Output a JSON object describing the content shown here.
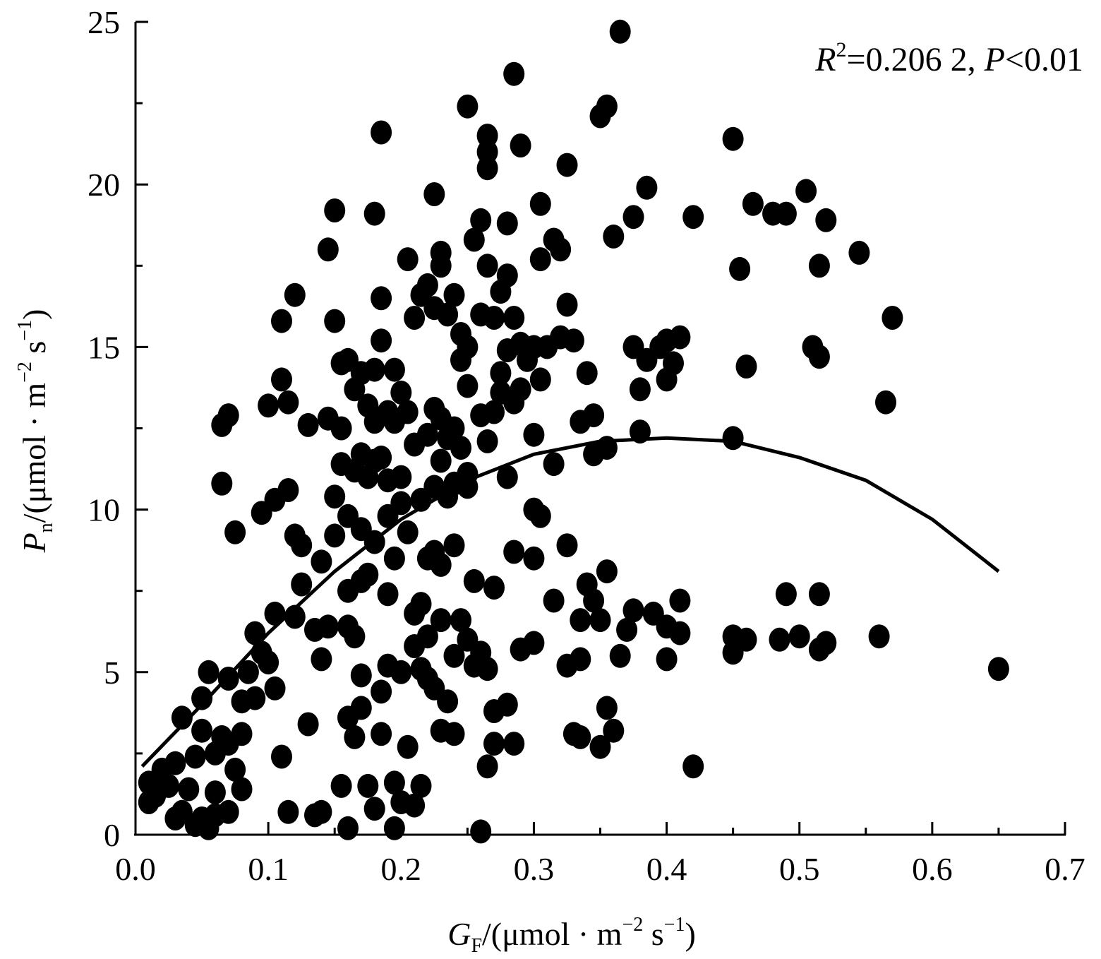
{
  "chart_data": {
    "type": "scatter",
    "xlim": [
      0.0,
      0.7
    ],
    "ylim": [
      0,
      25
    ],
    "x_ticks": [
      "0.0",
      "0.1",
      "0.2",
      "0.3",
      "0.4",
      "0.5",
      "0.6",
      "0.7"
    ],
    "x_tick_values": [
      0.0,
      0.1,
      0.2,
      0.3,
      0.4,
      0.5,
      0.6,
      0.7
    ],
    "y_ticks": [
      "0",
      "5",
      "10",
      "15",
      "20",
      "25"
    ],
    "y_tick_values": [
      0,
      5,
      10,
      15,
      20,
      25
    ],
    "xlabel": {
      "main": "G",
      "sub": "F",
      "unit_open": "/(μmol · m",
      "exp1": "−2",
      "unit_mid": " s",
      "exp2": "−1",
      "unit_close": ")"
    },
    "ylabel": {
      "main": "P",
      "sub": "n",
      "unit_open": "/(μmol · m",
      "exp1": "−2",
      "unit_mid": " s",
      "exp2": "−1",
      "unit_close": ")"
    },
    "annotation": {
      "r_symbol": "R",
      "r_exp": "2",
      "r_value": "=0.206 2, ",
      "p_symbol": "P",
      "p_value": "<0.01"
    },
    "grid": false,
    "legend": "none",
    "marker_color": "#000000",
    "line_color": "#000000",
    "fit_curve": {
      "type": "quadratic",
      "x": [
        0.005,
        0.05,
        0.1,
        0.15,
        0.2,
        0.25,
        0.3,
        0.35,
        0.4,
        0.45,
        0.5,
        0.55,
        0.6,
        0.65
      ],
      "y": [
        2.1,
        4.0,
        6.2,
        8.1,
        9.7,
        10.9,
        11.7,
        12.1,
        12.2,
        12.1,
        11.6,
        10.9,
        9.7,
        8.1
      ]
    },
    "series": [
      {
        "points": [
          [
            0.01,
            1.6
          ],
          [
            0.01,
            1.0
          ],
          [
            0.015,
            1.2
          ],
          [
            0.02,
            2.0
          ],
          [
            0.025,
            1.5
          ],
          [
            0.03,
            2.2
          ],
          [
            0.03,
            0.5
          ],
          [
            0.035,
            3.6
          ],
          [
            0.035,
            0.7
          ],
          [
            0.04,
            1.4
          ],
          [
            0.045,
            0.3
          ],
          [
            0.045,
            2.4
          ],
          [
            0.05,
            4.2
          ],
          [
            0.05,
            3.2
          ],
          [
            0.05,
            0.5
          ],
          [
            0.055,
            5.0
          ],
          [
            0.055,
            0.2
          ],
          [
            0.06,
            2.5
          ],
          [
            0.06,
            1.3
          ],
          [
            0.06,
            0.6
          ],
          [
            0.065,
            12.6
          ],
          [
            0.065,
            10.8
          ],
          [
            0.065,
            3.0
          ],
          [
            0.07,
            12.9
          ],
          [
            0.07,
            4.8
          ],
          [
            0.07,
            2.8
          ],
          [
            0.07,
            0.7
          ],
          [
            0.075,
            9.3
          ],
          [
            0.075,
            2.0
          ],
          [
            0.08,
            4.1
          ],
          [
            0.08,
            3.1
          ],
          [
            0.08,
            1.4
          ],
          [
            0.085,
            5.0
          ],
          [
            0.09,
            6.2
          ],
          [
            0.09,
            4.2
          ],
          [
            0.095,
            9.9
          ],
          [
            0.095,
            5.6
          ],
          [
            0.1,
            13.2
          ],
          [
            0.1,
            5.3
          ],
          [
            0.105,
            10.3
          ],
          [
            0.105,
            4.5
          ],
          [
            0.105,
            6.8
          ],
          [
            0.11,
            15.8
          ],
          [
            0.11,
            14.0
          ],
          [
            0.11,
            2.4
          ],
          [
            0.115,
            10.6
          ],
          [
            0.115,
            13.3
          ],
          [
            0.115,
            0.7
          ],
          [
            0.12,
            16.6
          ],
          [
            0.12,
            9.2
          ],
          [
            0.12,
            6.7
          ],
          [
            0.125,
            8.9
          ],
          [
            0.125,
            7.7
          ],
          [
            0.13,
            12.6
          ],
          [
            0.13,
            3.4
          ],
          [
            0.135,
            6.3
          ],
          [
            0.135,
            0.6
          ],
          [
            0.14,
            8.4
          ],
          [
            0.14,
            5.4
          ],
          [
            0.14,
            0.7
          ],
          [
            0.145,
            18.0
          ],
          [
            0.145,
            12.8
          ],
          [
            0.145,
            6.4
          ],
          [
            0.15,
            19.2
          ],
          [
            0.15,
            15.8
          ],
          [
            0.15,
            10.4
          ],
          [
            0.15,
            9.2
          ],
          [
            0.155,
            14.5
          ],
          [
            0.155,
            12.5
          ],
          [
            0.155,
            11.4
          ],
          [
            0.155,
            1.5
          ],
          [
            0.16,
            14.6
          ],
          [
            0.16,
            9.8
          ],
          [
            0.16,
            7.5
          ],
          [
            0.16,
            6.4
          ],
          [
            0.16,
            3.6
          ],
          [
            0.16,
            0.2
          ],
          [
            0.165,
            13.7
          ],
          [
            0.165,
            11.2
          ],
          [
            0.165,
            6.1
          ],
          [
            0.165,
            3.0
          ],
          [
            0.17,
            14.2
          ],
          [
            0.17,
            11.7
          ],
          [
            0.17,
            9.4
          ],
          [
            0.17,
            7.8
          ],
          [
            0.17,
            4.9
          ],
          [
            0.17,
            3.9
          ],
          [
            0.175,
            13.2
          ],
          [
            0.175,
            11.0
          ],
          [
            0.175,
            8.0
          ],
          [
            0.175,
            1.5
          ],
          [
            0.18,
            19.1
          ],
          [
            0.18,
            14.3
          ],
          [
            0.18,
            12.7
          ],
          [
            0.18,
            11.5
          ],
          [
            0.18,
            9.0
          ],
          [
            0.18,
            0.8
          ],
          [
            0.185,
            21.6
          ],
          [
            0.185,
            16.5
          ],
          [
            0.185,
            15.2
          ],
          [
            0.185,
            11.6
          ],
          [
            0.185,
            4.4
          ],
          [
            0.185,
            3.1
          ],
          [
            0.19,
            13.0
          ],
          [
            0.19,
            10.9
          ],
          [
            0.19,
            9.8
          ],
          [
            0.19,
            7.4
          ],
          [
            0.19,
            5.2
          ],
          [
            0.195,
            14.3
          ],
          [
            0.195,
            12.7
          ],
          [
            0.195,
            8.5
          ],
          [
            0.195,
            1.6
          ],
          [
            0.195,
            0.2
          ],
          [
            0.2,
            13.6
          ],
          [
            0.2,
            11.0
          ],
          [
            0.2,
            10.2
          ],
          [
            0.2,
            5.0
          ],
          [
            0.2,
            1.0
          ],
          [
            0.205,
            17.7
          ],
          [
            0.205,
            13.0
          ],
          [
            0.205,
            9.3
          ],
          [
            0.205,
            2.7
          ],
          [
            0.21,
            15.9
          ],
          [
            0.21,
            12.0
          ],
          [
            0.21,
            6.8
          ],
          [
            0.21,
            5.8
          ],
          [
            0.21,
            0.9
          ],
          [
            0.215,
            16.6
          ],
          [
            0.215,
            10.3
          ],
          [
            0.215,
            7.1
          ],
          [
            0.215,
            5.1
          ],
          [
            0.215,
            1.5
          ],
          [
            0.22,
            16.9
          ],
          [
            0.22,
            12.3
          ],
          [
            0.22,
            8.5
          ],
          [
            0.22,
            6.1
          ],
          [
            0.22,
            4.8
          ],
          [
            0.225,
            19.7
          ],
          [
            0.225,
            16.2
          ],
          [
            0.225,
            13.1
          ],
          [
            0.225,
            10.7
          ],
          [
            0.225,
            8.7
          ],
          [
            0.225,
            4.5
          ],
          [
            0.23,
            17.9
          ],
          [
            0.23,
            17.5
          ],
          [
            0.23,
            12.8
          ],
          [
            0.23,
            11.5
          ],
          [
            0.23,
            8.3
          ],
          [
            0.23,
            6.6
          ],
          [
            0.23,
            3.2
          ],
          [
            0.235,
            16.0
          ],
          [
            0.235,
            12.2
          ],
          [
            0.235,
            10.4
          ],
          [
            0.235,
            4.1
          ],
          [
            0.24,
            16.6
          ],
          [
            0.24,
            12.5
          ],
          [
            0.24,
            10.8
          ],
          [
            0.24,
            8.9
          ],
          [
            0.24,
            5.5
          ],
          [
            0.24,
            3.1
          ],
          [
            0.245,
            15.4
          ],
          [
            0.245,
            14.6
          ],
          [
            0.245,
            11.9
          ],
          [
            0.245,
            6.6
          ],
          [
            0.25,
            22.4
          ],
          [
            0.25,
            15.0
          ],
          [
            0.25,
            13.8
          ],
          [
            0.25,
            11.1
          ],
          [
            0.25,
            10.7
          ],
          [
            0.25,
            6.0
          ],
          [
            0.255,
            18.3
          ],
          [
            0.255,
            7.8
          ],
          [
            0.255,
            5.2
          ],
          [
            0.26,
            18.9
          ],
          [
            0.26,
            16.0
          ],
          [
            0.26,
            12.9
          ],
          [
            0.26,
            5.6
          ],
          [
            0.26,
            0.1
          ],
          [
            0.265,
            21.5
          ],
          [
            0.265,
            21.0
          ],
          [
            0.265,
            20.5
          ],
          [
            0.265,
            17.5
          ],
          [
            0.265,
            12.1
          ],
          [
            0.265,
            5.1
          ],
          [
            0.265,
            2.1
          ],
          [
            0.27,
            15.9
          ],
          [
            0.27,
            13.0
          ],
          [
            0.27,
            7.6
          ],
          [
            0.27,
            3.8
          ],
          [
            0.27,
            2.8
          ],
          [
            0.275,
            16.7
          ],
          [
            0.275,
            14.2
          ],
          [
            0.275,
            13.6
          ],
          [
            0.28,
            18.8
          ],
          [
            0.28,
            17.2
          ],
          [
            0.28,
            14.9
          ],
          [
            0.28,
            11.0
          ],
          [
            0.28,
            4.0
          ],
          [
            0.285,
            23.4
          ],
          [
            0.285,
            15.9
          ],
          [
            0.285,
            13.3
          ],
          [
            0.285,
            8.7
          ],
          [
            0.285,
            2.8
          ],
          [
            0.29,
            21.2
          ],
          [
            0.29,
            15.1
          ],
          [
            0.29,
            13.7
          ],
          [
            0.29,
            5.7
          ],
          [
            0.295,
            14.6
          ],
          [
            0.3,
            15.0
          ],
          [
            0.3,
            12.3
          ],
          [
            0.3,
            10.0
          ],
          [
            0.3,
            8.5
          ],
          [
            0.3,
            5.9
          ],
          [
            0.305,
            19.4
          ],
          [
            0.305,
            17.7
          ],
          [
            0.305,
            14.0
          ],
          [
            0.305,
            9.8
          ],
          [
            0.31,
            15.0
          ],
          [
            0.315,
            18.3
          ],
          [
            0.315,
            11.4
          ],
          [
            0.315,
            7.2
          ],
          [
            0.32,
            18.0
          ],
          [
            0.32,
            15.3
          ],
          [
            0.325,
            20.6
          ],
          [
            0.325,
            16.3
          ],
          [
            0.325,
            8.9
          ],
          [
            0.325,
            5.2
          ],
          [
            0.33,
            15.2
          ],
          [
            0.33,
            3.1
          ],
          [
            0.335,
            12.7
          ],
          [
            0.335,
            6.6
          ],
          [
            0.335,
            5.4
          ],
          [
            0.335,
            3.0
          ],
          [
            0.34,
            14.2
          ],
          [
            0.34,
            7.7
          ],
          [
            0.345,
            12.9
          ],
          [
            0.345,
            11.7
          ],
          [
            0.345,
            7.2
          ],
          [
            0.35,
            22.1
          ],
          [
            0.35,
            6.6
          ],
          [
            0.35,
            2.7
          ],
          [
            0.355,
            22.4
          ],
          [
            0.355,
            11.9
          ],
          [
            0.355,
            8.1
          ],
          [
            0.355,
            3.9
          ],
          [
            0.36,
            18.4
          ],
          [
            0.36,
            3.2
          ],
          [
            0.365,
            24.7
          ],
          [
            0.365,
            5.5
          ],
          [
            0.37,
            6.3
          ],
          [
            0.375,
            19.0
          ],
          [
            0.375,
            15.0
          ],
          [
            0.375,
            6.9
          ],
          [
            0.38,
            13.7
          ],
          [
            0.38,
            12.4
          ],
          [
            0.385,
            19.9
          ],
          [
            0.385,
            14.6
          ],
          [
            0.39,
            6.8
          ],
          [
            0.395,
            15.0
          ],
          [
            0.4,
            15.2
          ],
          [
            0.4,
            14.0
          ],
          [
            0.4,
            6.4
          ],
          [
            0.4,
            5.4
          ],
          [
            0.405,
            14.5
          ],
          [
            0.41,
            15.3
          ],
          [
            0.41,
            7.2
          ],
          [
            0.41,
            6.2
          ],
          [
            0.42,
            19.0
          ],
          [
            0.42,
            2.1
          ],
          [
            0.45,
            21.4
          ],
          [
            0.45,
            12.2
          ],
          [
            0.45,
            6.1
          ],
          [
            0.45,
            5.6
          ],
          [
            0.455,
            17.4
          ],
          [
            0.46,
            14.4
          ],
          [
            0.46,
            6.0
          ],
          [
            0.465,
            19.4
          ],
          [
            0.48,
            19.1
          ],
          [
            0.485,
            6.0
          ],
          [
            0.49,
            19.1
          ],
          [
            0.49,
            7.4
          ],
          [
            0.5,
            6.1
          ],
          [
            0.505,
            19.8
          ],
          [
            0.51,
            15.0
          ],
          [
            0.515,
            17.5
          ],
          [
            0.515,
            14.7
          ],
          [
            0.515,
            7.4
          ],
          [
            0.515,
            5.7
          ],
          [
            0.52,
            18.9
          ],
          [
            0.52,
            5.9
          ],
          [
            0.545,
            17.9
          ],
          [
            0.56,
            6.1
          ],
          [
            0.565,
            13.3
          ],
          [
            0.57,
            15.9
          ],
          [
            0.65,
            5.1
          ]
        ]
      }
    ]
  }
}
